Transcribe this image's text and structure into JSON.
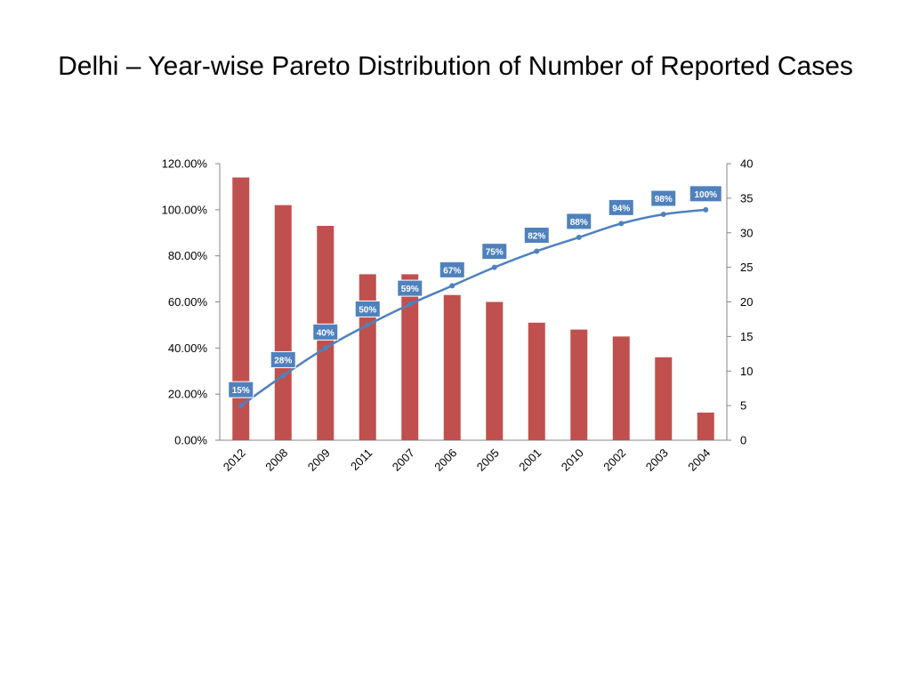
{
  "slide": {
    "title": "Delhi – Year-wise Pareto Distribution of Number of Reported Cases"
  },
  "chart_data": {
    "type": "bar",
    "title": "",
    "categories": [
      "2012",
      "2008",
      "2009",
      "2011",
      "2007",
      "2006",
      "2005",
      "2001",
      "2010",
      "2002",
      "2003",
      "2004"
    ],
    "series": [
      {
        "axis": "right",
        "type": "bar",
        "color": "#C0504D",
        "values": [
          38,
          34,
          31,
          24,
          24,
          21,
          20,
          17,
          16,
          15,
          12,
          4
        ]
      },
      {
        "axis": "left",
        "type": "line",
        "color": "#4F81BD",
        "values": [
          0.15,
          0.28,
          0.4,
          0.5,
          0.59,
          0.67,
          0.75,
          0.82,
          0.88,
          0.94,
          0.98,
          1.0
        ],
        "data_labels": [
          "15%",
          "28%",
          "40%",
          "50%",
          "59%",
          "67%",
          "75%",
          "82%",
          "88%",
          "94%",
          "98%",
          "100%"
        ]
      }
    ],
    "y_left": {
      "ylim": [
        0,
        1.2
      ],
      "tick_labels": [
        "0.00%",
        "20.00%",
        "40.00%",
        "60.00%",
        "80.00%",
        "100.00%",
        "120.00%"
      ]
    },
    "y_right": {
      "ylim": [
        0,
        40
      ],
      "tick_labels": [
        "0",
        "5",
        "10",
        "15",
        "20",
        "25",
        "30",
        "35",
        "40"
      ]
    },
    "xlabel": "",
    "ylabel": "",
    "grid": false,
    "legend": "none",
    "label_color": "#4F81BD"
  }
}
